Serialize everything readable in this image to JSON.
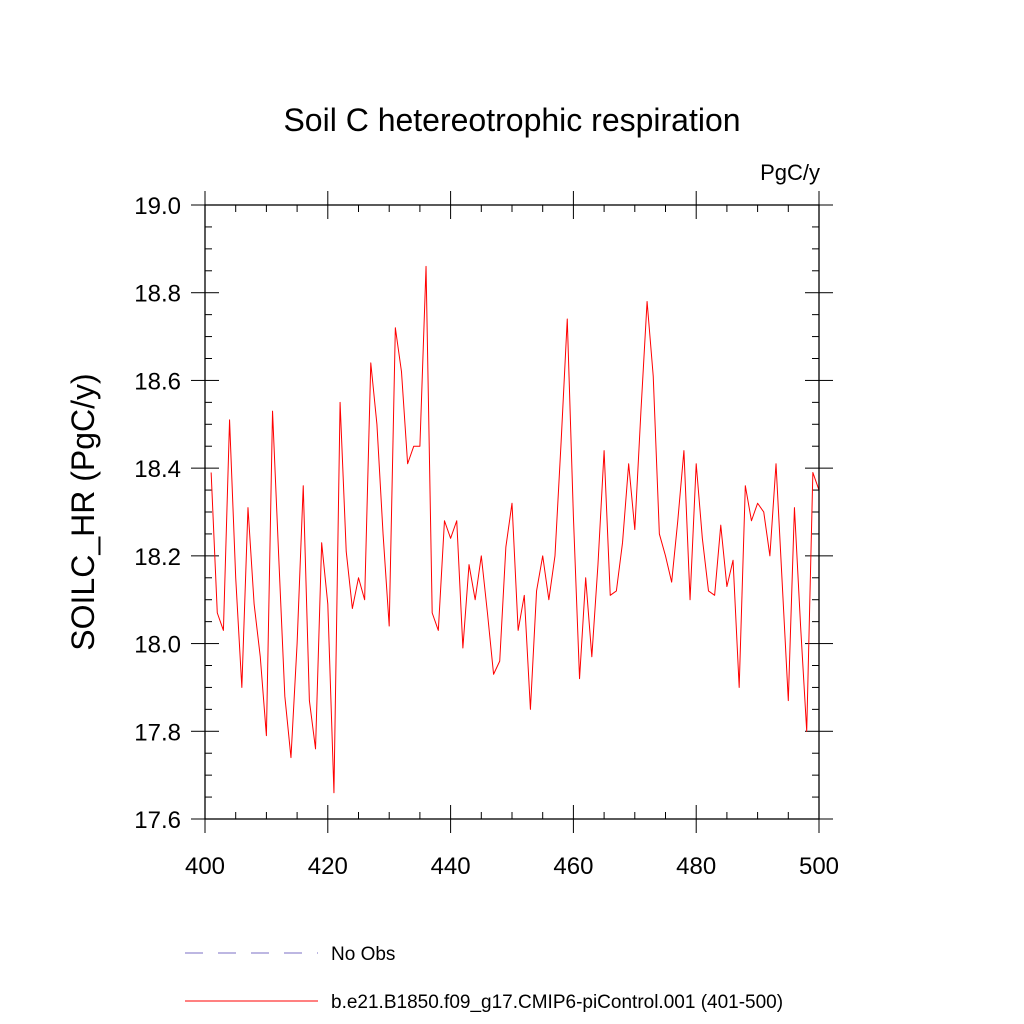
{
  "chart_data": {
    "type": "line",
    "title": "Soil C hetereotrophic respiration",
    "units_label": "PgC/y",
    "xlabel": "",
    "ylabel": "SOILC_HR  (PgC/y)",
    "xlim": [
      400,
      500
    ],
    "ylim": [
      17.6,
      19.0
    ],
    "xticks": [
      400,
      420,
      440,
      460,
      480,
      500
    ],
    "yticks": [
      17.6,
      17.8,
      18.0,
      18.2,
      18.4,
      18.6,
      18.8,
      19.0
    ],
    "ytick_labels": [
      "17.6",
      "17.8",
      "18.0",
      "18.2",
      "18.4",
      "18.6",
      "18.8",
      "19.0"
    ],
    "legend": [
      {
        "name": "No Obs",
        "color": "#7b6fc6",
        "style": "dashed"
      },
      {
        "name": "b.e21.B1850.f09_g17.CMIP6-piControl.001 (401-500)",
        "color": "#ff0000",
        "style": "solid"
      }
    ],
    "series": [
      {
        "name": "b.e21.B1850.f09_g17.CMIP6-piControl.001 (401-500)",
        "color": "#ff0000",
        "x": [
          401,
          402,
          403,
          404,
          405,
          406,
          407,
          408,
          409,
          410,
          411,
          412,
          413,
          414,
          415,
          416,
          417,
          418,
          419,
          420,
          421,
          422,
          423,
          424,
          425,
          426,
          427,
          428,
          429,
          430,
          431,
          432,
          433,
          434,
          435,
          436,
          437,
          438,
          439,
          440,
          441,
          442,
          443,
          444,
          445,
          446,
          447,
          448,
          449,
          450,
          451,
          452,
          453,
          454,
          455,
          456,
          457,
          458,
          459,
          460,
          461,
          462,
          463,
          464,
          465,
          466,
          467,
          468,
          469,
          470,
          471,
          472,
          473,
          474,
          475,
          476,
          477,
          478,
          479,
          480,
          481,
          482,
          483,
          484,
          485,
          486,
          487,
          488,
          489,
          490,
          491,
          492,
          493,
          494,
          495,
          496,
          497,
          498,
          499,
          500
        ],
        "values": [
          18.39,
          18.07,
          18.03,
          18.51,
          18.15,
          17.9,
          18.31,
          18.09,
          17.97,
          17.79,
          18.53,
          18.2,
          17.88,
          17.74,
          18.0,
          18.36,
          17.87,
          17.76,
          18.23,
          18.09,
          17.66,
          18.55,
          18.21,
          18.08,
          18.15,
          18.1,
          18.64,
          18.5,
          18.25,
          18.04,
          18.72,
          18.62,
          18.41,
          18.45,
          18.45,
          18.86,
          18.07,
          18.03,
          18.28,
          18.24,
          18.28,
          17.99,
          18.18,
          18.1,
          18.2,
          18.07,
          17.93,
          17.96,
          18.22,
          18.32,
          18.03,
          18.11,
          17.85,
          18.12,
          18.2,
          18.1,
          18.2,
          18.46,
          18.74,
          18.29,
          17.92,
          18.15,
          17.97,
          18.18,
          18.44,
          18.11,
          18.12,
          18.23,
          18.41,
          18.26,
          18.53,
          18.78,
          18.61,
          18.25,
          18.2,
          18.14,
          18.28,
          18.44,
          18.1,
          18.41,
          18.24,
          18.12,
          18.11,
          18.27,
          18.13,
          18.19,
          17.9,
          18.36,
          18.28,
          18.32,
          18.3,
          18.2,
          18.41,
          18.14,
          17.87,
          18.31,
          18.04,
          17.8,
          18.39,
          18.35
        ]
      }
    ]
  }
}
